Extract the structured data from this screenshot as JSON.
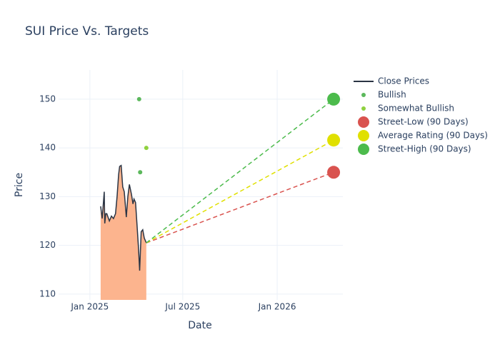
{
  "chart_data": {
    "type": "line",
    "title": "SUI Price Vs. Targets",
    "xlabel": "Date",
    "ylabel": "Price",
    "xlim": [
      "2024-11-01",
      "2026-05-09"
    ],
    "xticks": [
      {
        "value": "2025-01-01",
        "label": "Jan 2025"
      },
      {
        "value": "2025-07-01",
        "label": "Jul 2025"
      },
      {
        "value": "2026-01-01",
        "label": "Jan 2026"
      }
    ],
    "ylim": [
      108.8,
      156
    ],
    "yticks": [
      110,
      120,
      130,
      140,
      150
    ],
    "grid": true,
    "legend": "right",
    "series": [
      {
        "name": "Close Prices",
        "color": "#2a3444",
        "fill_color": "#fcb48e",
        "x": [
          "2025-01-22",
          "2025-01-25",
          "2025-01-29",
          "2025-01-30",
          "2025-02-01",
          "2025-02-03",
          "2025-02-08",
          "2025-02-12",
          "2025-02-16",
          "2025-02-20",
          "2025-02-23",
          "2025-02-26",
          "2025-02-28",
          "2025-03-03",
          "2025-03-06",
          "2025-03-09",
          "2025-03-13",
          "2025-03-16",
          "2025-03-19",
          "2025-03-23",
          "2025-03-26",
          "2025-03-28",
          "2025-03-31",
          "2025-04-03",
          "2025-04-06",
          "2025-04-08",
          "2025-04-11",
          "2025-04-14",
          "2025-04-17",
          "2025-04-21"
        ],
        "values": [
          128,
          125.5,
          131,
          124.5,
          126.5,
          126.5,
          125,
          126,
          125.5,
          126.5,
          130,
          134.5,
          136.2,
          136.4,
          132,
          131,
          125.8,
          130,
          132.5,
          130.5,
          128.5,
          129.5,
          128.8,
          124,
          119,
          114.8,
          122.8,
          123.2,
          121.5,
          120.5
        ]
      },
      {
        "name": "Bullish",
        "color": "#5cb85c",
        "x": [
          "2025-04-07",
          "2025-04-09"
        ],
        "values": [
          150,
          135
        ]
      },
      {
        "name": "Somewhat Bullish",
        "color": "#8fd13f",
        "x": [
          "2025-04-21"
        ],
        "values": [
          140
        ]
      },
      {
        "name": "Street-Low (90 Days)",
        "color": "#d9534f",
        "x": [
          "2026-04-21"
        ],
        "values": [
          135
        ],
        "dash": true
      },
      {
        "name": "Average Rating (90 Days)",
        "color": "#e0e000",
        "x": [
          "2026-04-21"
        ],
        "values": [
          141.6
        ],
        "dash": true
      },
      {
        "name": "Street-High (90 Days)",
        "color": "#4cbb4c",
        "x": [
          "2026-04-21"
        ],
        "values": [
          150
        ],
        "dash": true
      }
    ]
  }
}
